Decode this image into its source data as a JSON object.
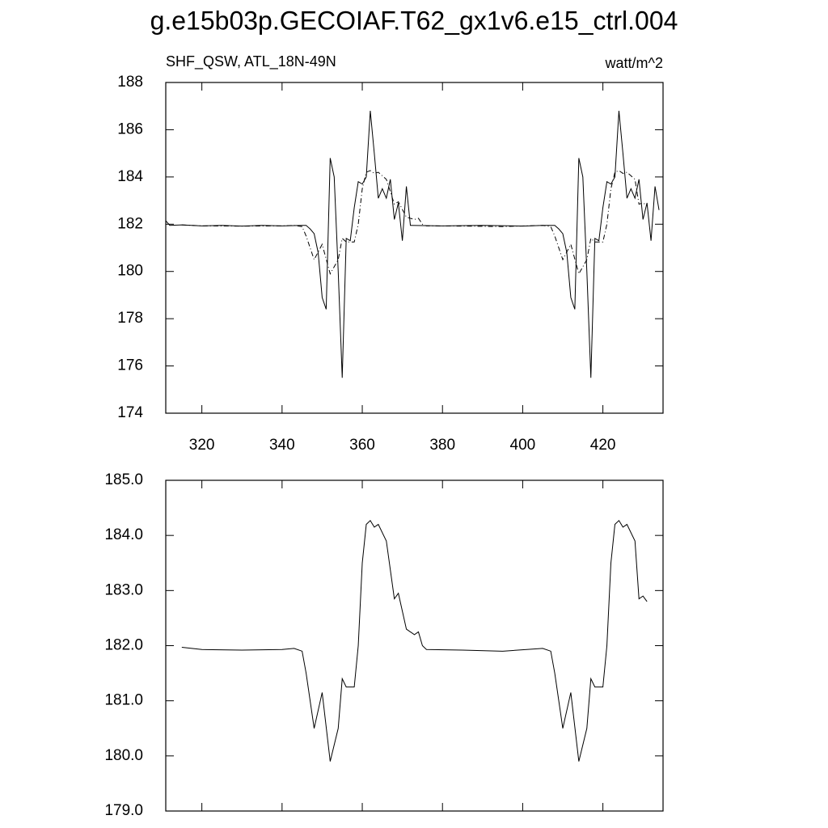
{
  "chart_data": [
    {
      "type": "line",
      "title": "g.e15b03p.GECOIAF.T62_gx1v6.e15_ctrl.004",
      "left_string": "SHF_QSW, ATL_18N-49N",
      "right_string": "watt/m^2",
      "xlim": [
        311,
        435
      ],
      "xticks": [
        320,
        340,
        360,
        380,
        400,
        420
      ],
      "xtick_labels": true,
      "ylim": [
        174,
        188
      ],
      "yticks": [
        174,
        176,
        178,
        180,
        182,
        184,
        186,
        188
      ],
      "series": [
        {
          "color": "#000000",
          "dash": false,
          "x": [
            311,
            312,
            315,
            320,
            325,
            330,
            335,
            340,
            345,
            346,
            347,
            348,
            349,
            350,
            351,
            352,
            353,
            354,
            355,
            356,
            357,
            358,
            359,
            360,
            361,
            362,
            363,
            364,
            365,
            366,
            367,
            368,
            369,
            370,
            371,
            372,
            380,
            390,
            400,
            405,
            408,
            409,
            410,
            411,
            412,
            413,
            414,
            415,
            416,
            417,
            418,
            419,
            420,
            421,
            422,
            423,
            424,
            425,
            426,
            427,
            428,
            429,
            430,
            431,
            432,
            433,
            434
          ],
          "values": [
            182.15,
            181.95,
            181.97,
            181.93,
            181.95,
            181.92,
            181.95,
            181.93,
            181.95,
            181.95,
            181.8,
            181.6,
            180.8,
            178.9,
            178.4,
            184.8,
            184.0,
            180.0,
            175.5,
            181.4,
            181.3,
            182.7,
            183.8,
            183.7,
            184.0,
            186.8,
            185.0,
            183.1,
            183.5,
            183.1,
            183.9,
            182.2,
            182.9,
            181.3,
            183.6,
            181.95,
            181.93,
            181.95,
            181.92,
            181.95,
            181.95,
            181.8,
            181.6,
            180.8,
            178.9,
            178.4,
            184.8,
            184.0,
            180.0,
            175.5,
            181.4,
            181.3,
            182.7,
            183.8,
            183.7,
            184.0,
            186.8,
            185.0,
            183.1,
            183.5,
            183.1,
            183.9,
            182.2,
            182.9,
            181.3,
            183.6,
            182.6
          ]
        },
        {
          "color": "#000000",
          "dash": true,
          "x": [
            315,
            320,
            330,
            340,
            343,
            345,
            346,
            348,
            350,
            352,
            354,
            355,
            356,
            358,
            359,
            360,
            361,
            362,
            363,
            364,
            366,
            368,
            369,
            371,
            373,
            374,
            375,
            376,
            385,
            395,
            405,
            407,
            408,
            410,
            412,
            414,
            416,
            417,
            418,
            420,
            421,
            422,
            423,
            424,
            425,
            426,
            428,
            429,
            430,
            431
          ],
          "values": [
            181.97,
            181.93,
            181.92,
            181.93,
            181.95,
            181.9,
            181.5,
            180.5,
            181.15,
            179.9,
            180.5,
            181.4,
            181.25,
            181.25,
            182.0,
            183.5,
            184.2,
            184.27,
            184.15,
            184.2,
            183.9,
            182.85,
            182.95,
            182.3,
            182.2,
            182.25,
            182.0,
            181.93,
            181.92,
            181.9,
            181.95,
            181.9,
            181.5,
            180.5,
            181.15,
            179.9,
            180.5,
            181.4,
            181.25,
            181.25,
            182.0,
            183.5,
            184.2,
            184.27,
            184.15,
            184.2,
            183.9,
            182.85,
            182.9,
            182.8
          ]
        }
      ]
    },
    {
      "type": "line",
      "xlim": [
        311,
        435
      ],
      "xticks": [
        320,
        340,
        360,
        380,
        400,
        420
      ],
      "xtick_labels": false,
      "ylim": [
        179,
        185
      ],
      "yticks": [
        {
          "value": 179,
          "label": "179.0"
        },
        {
          "value": 180,
          "label": "180.0"
        },
        {
          "value": 181,
          "label": "181.0"
        },
        {
          "value": 182,
          "label": "182.0"
        },
        {
          "value": 183,
          "label": "183.0"
        },
        {
          "value": 184,
          "label": "184.0"
        },
        {
          "value": 185,
          "label": "185.0"
        }
      ],
      "series": [
        {
          "color": "#000000",
          "dash": false,
          "x": [
            315,
            320,
            330,
            340,
            343,
            345,
            346,
            348,
            350,
            352,
            354,
            355,
            356,
            358,
            359,
            360,
            361,
            362,
            363,
            364,
            366,
            368,
            369,
            371,
            373,
            374,
            375,
            376,
            385,
            395,
            405,
            407,
            408,
            410,
            412,
            414,
            416,
            417,
            418,
            420,
            421,
            422,
            423,
            424,
            425,
            426,
            428,
            429,
            430,
            431
          ],
          "values": [
            181.97,
            181.93,
            181.92,
            181.93,
            181.95,
            181.9,
            181.5,
            180.5,
            181.15,
            179.9,
            180.5,
            181.4,
            181.25,
            181.25,
            182.0,
            183.5,
            184.2,
            184.27,
            184.15,
            184.2,
            183.9,
            182.85,
            182.95,
            182.3,
            182.2,
            182.25,
            182.0,
            181.93,
            181.92,
            181.9,
            181.95,
            181.9,
            181.5,
            180.5,
            181.15,
            179.9,
            180.5,
            181.4,
            181.25,
            181.25,
            182.0,
            183.5,
            184.2,
            184.27,
            184.15,
            184.2,
            183.9,
            182.85,
            182.9,
            182.8
          ]
        }
      ]
    }
  ]
}
